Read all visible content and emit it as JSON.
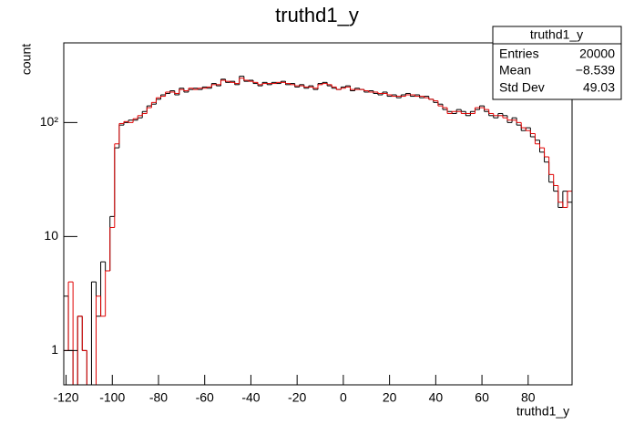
{
  "chart_data": {
    "type": "histogram",
    "title": "truthd1_y",
    "x_label": "truthd1_y",
    "y_label": "count",
    "bins": [
      -121,
      -119,
      -117,
      -115,
      -113,
      -111,
      -109,
      -107,
      -105,
      -103,
      -101,
      -99,
      -97,
      -95,
      -93,
      -91,
      -89,
      -87,
      -85,
      -83,
      -81,
      -79,
      -77,
      -75,
      -73,
      -71,
      -69,
      -67,
      -65,
      -63,
      -61,
      -59,
      -57,
      -55,
      -53,
      -51,
      -49,
      -47,
      -45,
      -43,
      -41,
      -39,
      -37,
      -35,
      -33,
      -31,
      -29,
      -27,
      -25,
      -23,
      -21,
      -19,
      -17,
      -15,
      -13,
      -11,
      -9,
      -7,
      -5,
      -3,
      -1,
      1,
      3,
      5,
      7,
      9,
      11,
      13,
      15,
      17,
      19,
      21,
      23,
      25,
      27,
      29,
      31,
      33,
      35,
      37,
      39,
      41,
      43,
      45,
      47,
      49,
      51,
      53,
      55,
      57,
      59,
      61,
      63,
      65,
      67,
      69,
      71,
      73,
      75,
      77,
      79,
      81,
      83,
      85,
      87,
      89,
      91,
      93,
      95,
      97,
      99
    ],
    "series": [
      {
        "color": "#000000",
        "values": [
          3,
          1,
          0,
          2,
          1,
          0,
          4,
          2,
          6,
          5,
          15,
          60,
          95,
          100,
          105,
          105,
          110,
          125,
          140,
          145,
          160,
          175,
          180,
          190,
          175,
          200,
          185,
          195,
          200,
          195,
          205,
          200,
          220,
          210,
          240,
          225,
          230,
          215,
          255,
          230,
          235,
          220,
          210,
          225,
          215,
          225,
          220,
          230,
          215,
          220,
          205,
          215,
          200,
          210,
          195,
          220,
          225,
          210,
          200,
          195,
          205,
          210,
          190,
          200,
          195,
          185,
          190,
          180,
          175,
          185,
          170,
          175,
          165,
          175,
          180,
          170,
          175,
          165,
          170,
          160,
          150,
          145,
          130,
          125,
          120,
          130,
          125,
          115,
          125,
          130,
          140,
          125,
          115,
          110,
          120,
          115,
          100,
          110,
          95,
          85,
          90,
          75,
          70,
          55,
          45,
          30,
          25,
          18,
          25,
          20
        ]
      },
      {
        "color": "#e00000",
        "values": [
          1,
          4,
          0,
          2,
          1,
          0,
          0,
          3,
          2,
          5,
          12,
          65,
          98,
          102,
          100,
          108,
          115,
          120,
          135,
          150,
          165,
          170,
          185,
          185,
          180,
          195,
          190,
          200,
          195,
          200,
          200,
          205,
          215,
          215,
          235,
          230,
          225,
          220,
          245,
          235,
          230,
          225,
          215,
          220,
          220,
          220,
          225,
          225,
          220,
          215,
          210,
          210,
          205,
          205,
          200,
          215,
          220,
          215,
          205,
          195,
          200,
          205,
          195,
          195,
          195,
          190,
          185,
          185,
          180,
          180,
          175,
          170,
          170,
          170,
          175,
          175,
          170,
          170,
          165,
          160,
          155,
          140,
          135,
          120,
          125,
          125,
          120,
          120,
          120,
          135,
          135,
          130,
          120,
          115,
          115,
          110,
          105,
          105,
          100,
          90,
          85,
          80,
          65,
          60,
          50,
          35,
          28,
          20,
          18,
          25
        ]
      }
    ],
    "xlim": [
      -121,
      99
    ],
    "xticks": [
      -120,
      -100,
      -80,
      -60,
      -40,
      -20,
      0,
      20,
      40,
      60,
      80
    ],
    "ylim": [
      0.5,
      500
    ],
    "log_y": true,
    "yticks": [
      1,
      10,
      {
        "value": 100,
        "label": "10²"
      }
    ],
    "stats": {
      "title": "truthd1_y",
      "rows": [
        [
          "Entries",
          "20000"
        ],
        [
          "Mean",
          "−8.539"
        ],
        [
          "Std Dev",
          "49.03"
        ]
      ]
    }
  }
}
